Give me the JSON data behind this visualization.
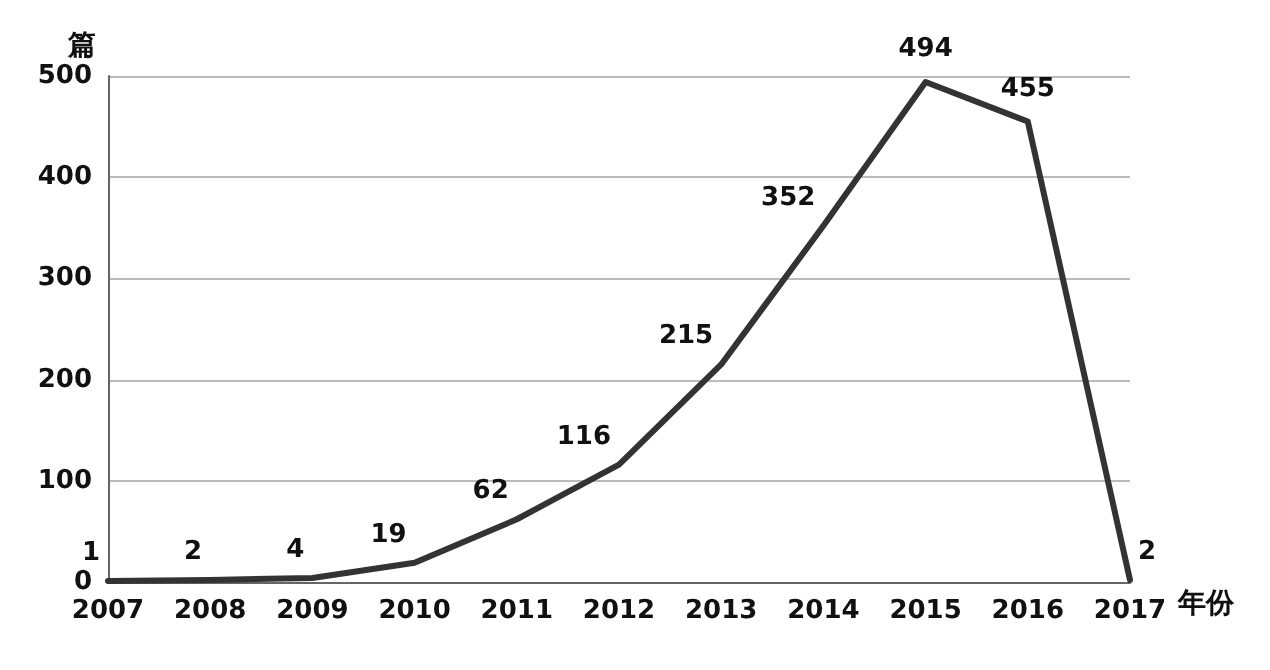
{
  "chart_data": {
    "type": "line",
    "xlabel": "年份",
    "ylabel": "篇",
    "categories": [
      "2007",
      "2008",
      "2009",
      "2010",
      "2011",
      "2012",
      "2013",
      "2014",
      "2015",
      "2016",
      "2017"
    ],
    "series": [
      {
        "color": "#333333",
        "values": [
          1,
          2,
          4,
          19,
          62,
          116,
          215,
          352,
          494,
          455,
          2
        ]
      }
    ],
    "ylim": [
      0,
      500
    ],
    "yticks": [
      0,
      100,
      200,
      300,
      400,
      500
    ],
    "grid": "y",
    "data_labels": true,
    "marker": "none",
    "line_style": "solid"
  }
}
